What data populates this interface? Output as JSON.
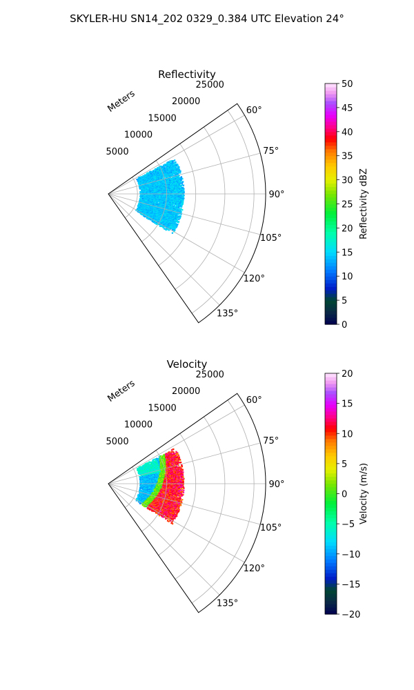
{
  "figure": {
    "suptitle": "SKYLER-HU  SN14_202  0329_0.384 UTC Elevation 24°"
  },
  "chart_data": [
    {
      "type": "heatmap",
      "title": "Reflectivity",
      "projection": "polar",
      "theta_range_deg": [
        55,
        145
      ],
      "r_range": [
        0,
        27000
      ],
      "r_label": "Meters",
      "r_ticks": [
        5000,
        10000,
        15000,
        20000,
        25000
      ],
      "r_tick_labels": [
        "5000",
        "10000",
        "15000",
        "20000",
        "25000"
      ],
      "theta_ticks": [
        60,
        75,
        90,
        105,
        120,
        135
      ],
      "theta_tick_labels": [
        "60°",
        "75°",
        "90°",
        "105°",
        "120°",
        "135°"
      ],
      "grid": true,
      "data_extent": {
        "r": [
          5500,
          13000
        ],
        "theta_deg": [
          62,
          122
        ]
      },
      "colorbar": {
        "label": "Reflectivity dBZ",
        "range": [
          0,
          50
        ],
        "ticks": [
          0,
          5,
          10,
          15,
          20,
          25,
          30,
          35,
          40,
          45,
          50
        ],
        "tick_labels": [
          "0",
          "5",
          "10",
          "15",
          "20",
          "25",
          "30",
          "35",
          "40",
          "45",
          "50"
        ],
        "colormap": "pyart_HomeyerRainbow-like"
      }
    },
    {
      "type": "heatmap",
      "title": "Velocity",
      "projection": "polar",
      "theta_range_deg": [
        55,
        145
      ],
      "r_range": [
        0,
        27000
      ],
      "r_label": "Meters",
      "r_ticks": [
        5000,
        10000,
        15000,
        20000,
        25000
      ],
      "r_tick_labels": [
        "5000",
        "10000",
        "15000",
        "20000",
        "25000"
      ],
      "theta_ticks": [
        60,
        75,
        90,
        105,
        120,
        135
      ],
      "theta_tick_labels": [
        "60°",
        "75°",
        "90°",
        "105°",
        "120°",
        "135°"
      ],
      "grid": true,
      "data_extent": {
        "r": [
          5500,
          13000
        ],
        "theta_deg": [
          62,
          122
        ]
      },
      "colorbar": {
        "label": "Velocity (m/s)",
        "range": [
          -20,
          20
        ],
        "ticks": [
          -20,
          -15,
          -10,
          -5,
          0,
          5,
          10,
          15,
          20
        ],
        "tick_labels": [
          "−20",
          "−15",
          "−10",
          "−5",
          "0",
          "5",
          "10",
          "15",
          "20"
        ],
        "colormap": "pyart_HomeyerRainbow-like"
      }
    }
  ]
}
